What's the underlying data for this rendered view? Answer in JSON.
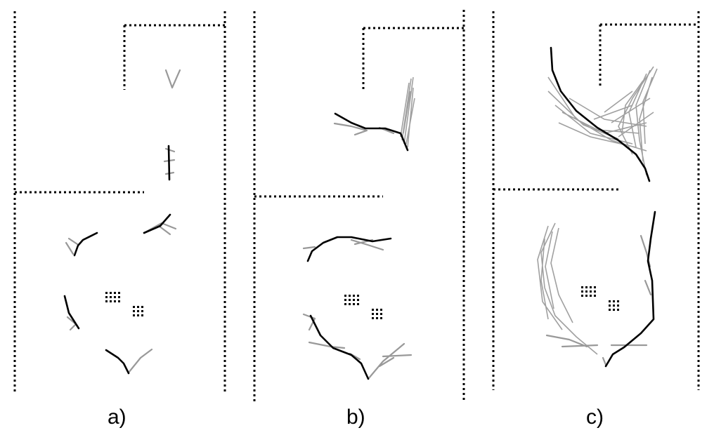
{
  "panels": [
    {
      "label": "a)"
    },
    {
      "label": "b)"
    },
    {
      "label": "c)"
    }
  ],
  "colors": {
    "walls": "#000000",
    "path_primary": "#000000",
    "path_secondary": "#999999"
  }
}
